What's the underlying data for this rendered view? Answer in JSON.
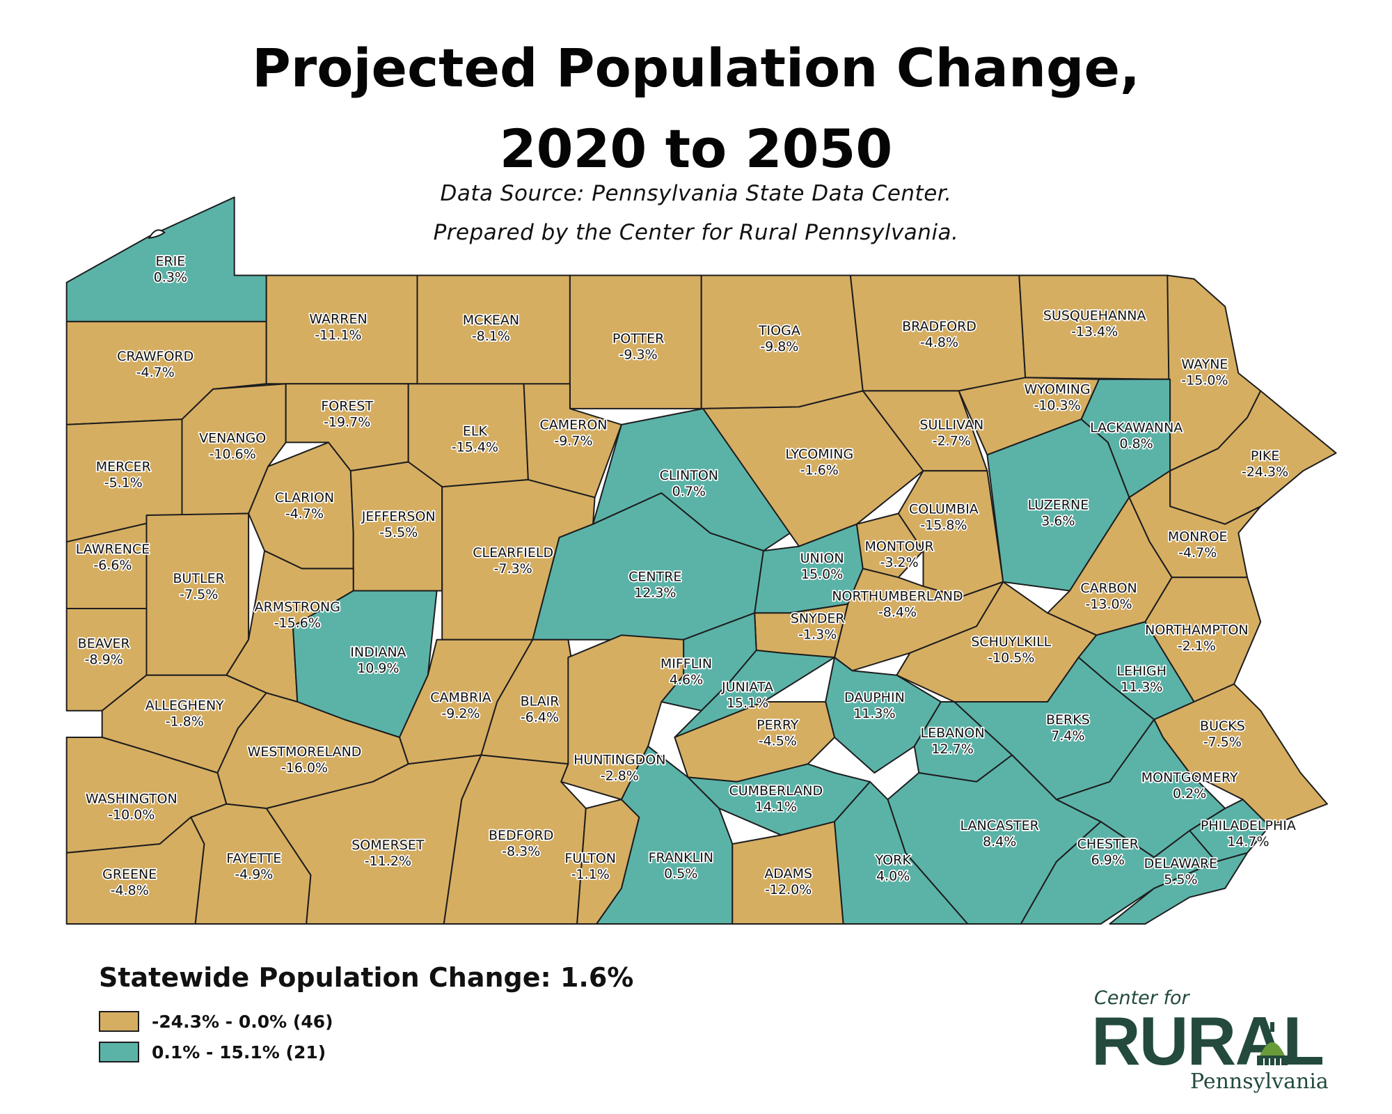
{
  "title_line1": "Projected Population Change,",
  "title_line2": "2020 to 2050",
  "source_line1": "Data Source: Pennsylvania State Data Center.",
  "source_line2": "Prepared by the Center for Rural Pennsylvania.",
  "colors": {
    "decline": "#d6ae62",
    "growth": "#5bb3a8",
    "border": "#1d1d1d"
  },
  "legend": {
    "heading": "Statewide Population Change: 1.6%",
    "items": [
      {
        "key": "decline",
        "label": "-24.3% - 0.0% (46)"
      },
      {
        "key": "growth",
        "label": "0.1% - 15.1% (21)"
      }
    ]
  },
  "logo": {
    "top": "Center for",
    "main": "RURAL",
    "bottom": "Pennsylvania"
  },
  "counties": [
    {
      "name": "ERIE",
      "change": "0.3%"
    },
    {
      "name": "CRAWFORD",
      "change": "-4.7%"
    },
    {
      "name": "WARREN",
      "change": "-11.1%"
    },
    {
      "name": "MCKEAN",
      "change": "-8.1%"
    },
    {
      "name": "POTTER",
      "change": "-9.3%"
    },
    {
      "name": "TIOGA",
      "change": "-9.8%"
    },
    {
      "name": "BRADFORD",
      "change": "-4.8%"
    },
    {
      "name": "SUSQUEHANNA",
      "change": "-13.4%"
    },
    {
      "name": "WAYNE",
      "change": "-15.0%"
    },
    {
      "name": "MERCER",
      "change": "-5.1%"
    },
    {
      "name": "VENANGO",
      "change": "-10.6%"
    },
    {
      "name": "FOREST",
      "change": "-19.7%"
    },
    {
      "name": "ELK",
      "change": "-15.4%"
    },
    {
      "name": "CAMERON",
      "change": "-9.7%"
    },
    {
      "name": "CLINTON",
      "change": "0.7%"
    },
    {
      "name": "LYCOMING",
      "change": "-1.6%"
    },
    {
      "name": "SULLIVAN",
      "change": "-2.7%"
    },
    {
      "name": "WYOMING",
      "change": "-10.3%"
    },
    {
      "name": "LACKAWANNA",
      "change": "0.8%"
    },
    {
      "name": "PIKE",
      "change": "-24.3%"
    },
    {
      "name": "LAWRENCE",
      "change": "-6.6%"
    },
    {
      "name": "BUTLER",
      "change": "-7.5%"
    },
    {
      "name": "CLARION",
      "change": "-4.7%"
    },
    {
      "name": "JEFFERSON",
      "change": "-5.5%"
    },
    {
      "name": "CLEARFIELD",
      "change": "-7.3%"
    },
    {
      "name": "CENTRE",
      "change": "12.3%"
    },
    {
      "name": "UNION",
      "change": "15.0%"
    },
    {
      "name": "MONTOUR",
      "change": "-3.2%"
    },
    {
      "name": "COLUMBIA",
      "change": "-15.8%"
    },
    {
      "name": "LUZERNE",
      "change": "3.6%"
    },
    {
      "name": "MONROE",
      "change": "-4.7%"
    },
    {
      "name": "CARBON",
      "change": "-13.0%"
    },
    {
      "name": "BEAVER",
      "change": "-8.9%"
    },
    {
      "name": "ARMSTRONG",
      "change": "-15.6%"
    },
    {
      "name": "INDIANA",
      "change": "10.9%"
    },
    {
      "name": "NORTHUMBERLAND",
      "change": "-8.4%"
    },
    {
      "name": "SNYDER",
      "change": "-1.3%"
    },
    {
      "name": "MIFFLIN",
      "change": "4.6%"
    },
    {
      "name": "SCHUYLKILL",
      "change": "-10.5%"
    },
    {
      "name": "NORTHAMPTON",
      "change": "-2.1%"
    },
    {
      "name": "LEHIGH",
      "change": "11.3%"
    },
    {
      "name": "ALLEGHENY",
      "change": "-1.8%"
    },
    {
      "name": "CAMBRIA",
      "change": "-9.2%"
    },
    {
      "name": "BLAIR",
      "change": "-6.4%"
    },
    {
      "name": "JUNIATA",
      "change": "15.1%"
    },
    {
      "name": "DAUPHIN",
      "change": "11.3%"
    },
    {
      "name": "PERRY",
      "change": "-4.5%"
    },
    {
      "name": "LEBANON",
      "change": "12.7%"
    },
    {
      "name": "BERKS",
      "change": "7.4%"
    },
    {
      "name": "BUCKS",
      "change": "-7.5%"
    },
    {
      "name": "WESTMORELAND",
      "change": "-16.0%"
    },
    {
      "name": "HUNTINGDON",
      "change": "-2.8%"
    },
    {
      "name": "WASHINGTON",
      "change": "-10.0%"
    },
    {
      "name": "CUMBERLAND",
      "change": "14.1%"
    },
    {
      "name": "MONTGOMERY",
      "change": "0.2%"
    },
    {
      "name": "LANCASTER",
      "change": "8.4%"
    },
    {
      "name": "PHILADELPHIA",
      "change": "14.7%"
    },
    {
      "name": "CHESTER",
      "change": "6.9%"
    },
    {
      "name": "DELAWARE",
      "change": "5.5%"
    },
    {
      "name": "SOMERSET",
      "change": "-11.2%"
    },
    {
      "name": "BEDFORD",
      "change": "-8.3%"
    },
    {
      "name": "FULTON",
      "change": "-1.1%"
    },
    {
      "name": "FRANKLIN",
      "change": "0.5%"
    },
    {
      "name": "ADAMS",
      "change": "-12.0%"
    },
    {
      "name": "YORK",
      "change": "4.0%"
    },
    {
      "name": "FAYETTE",
      "change": "-4.9%"
    },
    {
      "name": "GREENE",
      "change": "-4.8%"
    }
  ]
}
